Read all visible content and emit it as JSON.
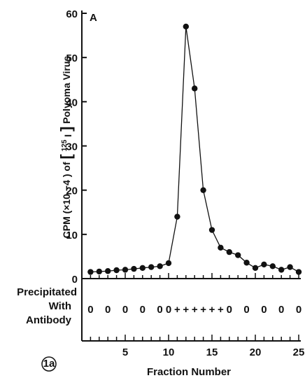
{
  "chart_data": {
    "type": "line",
    "panel_label": "A",
    "figure_tag": "1a",
    "ylabel": {
      "pre": "CPM (×10",
      "exp": "−4",
      "mid": ") of",
      "iso": "125",
      "el": "I",
      "post": "Polyoma Virus"
    },
    "xlabel": "Fraction Number",
    "xlim": [
      0,
      25.5
    ],
    "ylim": [
      0,
      60
    ],
    "yticks": [
      0,
      10,
      20,
      30,
      40,
      50,
      60
    ],
    "xticks": [
      5,
      10,
      15,
      20,
      25
    ],
    "series": [
      {
        "x": [
          1,
          2,
          3,
          4,
          5,
          6,
          7,
          8,
          9,
          10,
          11,
          12,
          13,
          14,
          15,
          16,
          17,
          18,
          19,
          20,
          21,
          22,
          23,
          24,
          25
        ],
        "y": [
          1.5,
          1.6,
          1.7,
          1.9,
          2.0,
          2.2,
          2.4,
          2.6,
          2.8,
          3.5,
          14.0,
          57.0,
          43.0,
          20.0,
          11.0,
          7.0,
          6.0,
          5.3,
          3.6,
          2.4,
          3.2,
          2.8,
          2.0,
          2.6,
          1.5
        ]
      }
    ],
    "precipitation": {
      "label_lines": [
        "Precipitated",
        "With",
        "Antibody"
      ],
      "marks": [
        "0",
        "0",
        "0",
        "0",
        "0",
        "0",
        "+",
        "+",
        "+",
        "+",
        "+",
        "+",
        "0",
        "0",
        "0",
        "0",
        "0"
      ],
      "mark_fractions": [
        1,
        3,
        5,
        7,
        9,
        10,
        11,
        12,
        13,
        14,
        15,
        16,
        17,
        19,
        21,
        23,
        25
      ]
    }
  }
}
